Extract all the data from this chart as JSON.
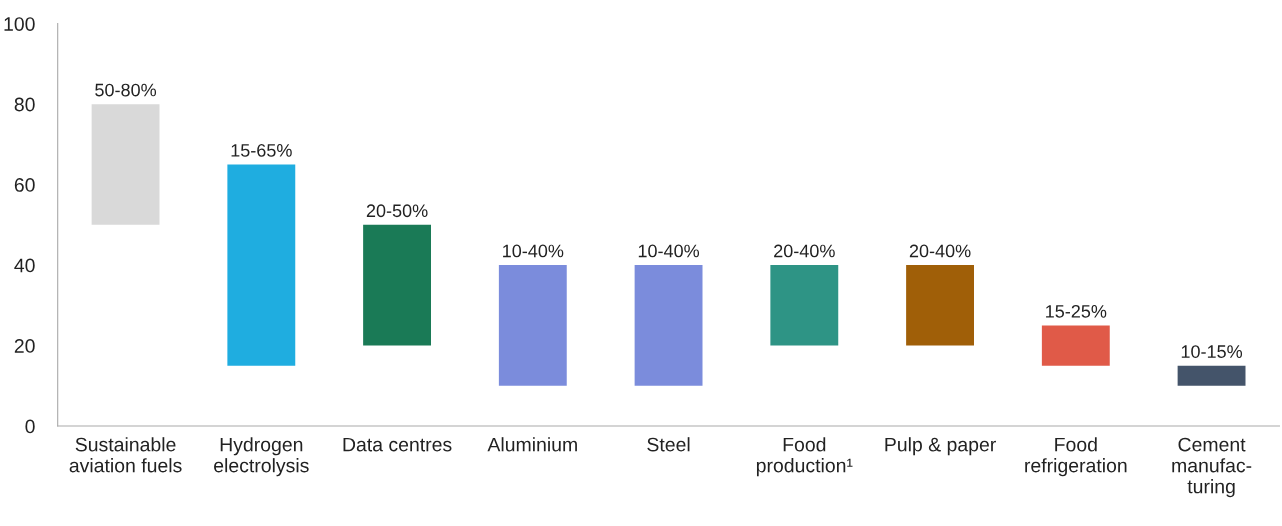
{
  "chart_data": {
    "type": "bar",
    "categories": [
      "Sustainable\naviation fuels",
      "Hydrogen\nelectrolysis",
      "Data centres",
      "Aluminium",
      "Steel",
      "Food\nproduction¹",
      "Pulp & paper",
      "Food\nrefrigeration",
      "Cement\nmanufac-\nturing"
    ],
    "base": [
      50,
      15,
      20,
      10,
      10,
      20,
      20,
      15,
      10
    ],
    "values": [
      30,
      50,
      30,
      30,
      30,
      20,
      20,
      10,
      5
    ],
    "colors": [
      "#d9d9d9",
      "#1fade0",
      "#1a7a56",
      "#7b8cdc",
      "#7b8cdc",
      "#2e9485",
      "#a05f08",
      "#e05a48",
      "#44546a"
    ],
    "annotations": [
      {
        "text": "50-80%",
        "x": "Sustainable\naviation fuels",
        "y": 80
      },
      {
        "text": "15-65%",
        "x": "Hydrogen\nelectrolysis",
        "y": 65
      },
      {
        "text": "20-50%",
        "x": "Data centres",
        "y": 50
      },
      {
        "text": "10-40%",
        "x": "Aluminium",
        "y": 40
      },
      {
        "text": "10-40%",
        "x": "Steel",
        "y": 40
      },
      {
        "text": "20-40%",
        "x": "Food\nproduction¹",
        "y": 40
      },
      {
        "text": "20-40%",
        "x": "Pulp & paper",
        "y": 40
      },
      {
        "text": "15-25%",
        "x": "Food\nrefrigeration",
        "y": 25
      },
      {
        "text": "10-15%",
        "x": "Cement\nmanufac-\nturing",
        "y": 15
      }
    ],
    "ylim": [
      0,
      100
    ],
    "yticks": [
      0,
      20,
      40,
      60,
      80,
      100
    ],
    "grid": false,
    "legend": false
  }
}
